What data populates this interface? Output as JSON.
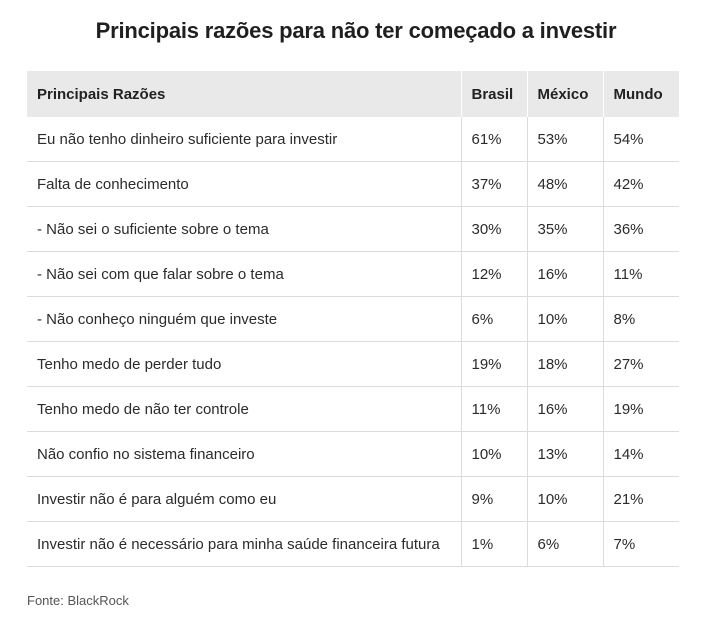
{
  "chart_data": {
    "type": "table",
    "title": "Principais razões para não ter começado a investir",
    "columns": [
      "Principais Razões",
      "Brasil",
      "México",
      "Mundo"
    ],
    "rows": [
      {
        "reason": "Eu não tenho dinheiro suficiente para investir",
        "brasil": "61%",
        "mexico": "53%",
        "mundo": "54%"
      },
      {
        "reason": "Falta de conhecimento",
        "brasil": "37%",
        "mexico": "48%",
        "mundo": "42%"
      },
      {
        "reason": "- Não sei o suficiente sobre o tema",
        "brasil": "30%",
        "mexico": "35%",
        "mundo": "36%"
      },
      {
        "reason": "- Não sei com que falar sobre o tema",
        "brasil": "12%",
        "mexico": "16%",
        "mundo": "11%"
      },
      {
        "reason": "- Não conheço ninguém que investe",
        "brasil": "6%",
        "mexico": "10%",
        "mundo": "8%"
      },
      {
        "reason": "Tenho medo de perder tudo",
        "brasil": "19%",
        "mexico": "18%",
        "mundo": "27%"
      },
      {
        "reason": "Tenho medo de não ter controle",
        "brasil": "11%",
        "mexico": "16%",
        "mundo": "19%"
      },
      {
        "reason": "Não confio no sistema financeiro",
        "brasil": "10%",
        "mexico": "13%",
        "mundo": "14%"
      },
      {
        "reason": "Investir não é para alguém como eu",
        "brasil": "9%",
        "mexico": "10%",
        "mundo": "21%"
      },
      {
        "reason": "Investir não é necessário para minha saúde financeira futura",
        "brasil": "1%",
        "mexico": "6%",
        "mundo": "7%"
      }
    ],
    "source": "Fonte: BlackRock"
  },
  "colors": {
    "header_background": "#e9e9e9",
    "row_divider": "#dcdcdc",
    "text": "#222222"
  }
}
